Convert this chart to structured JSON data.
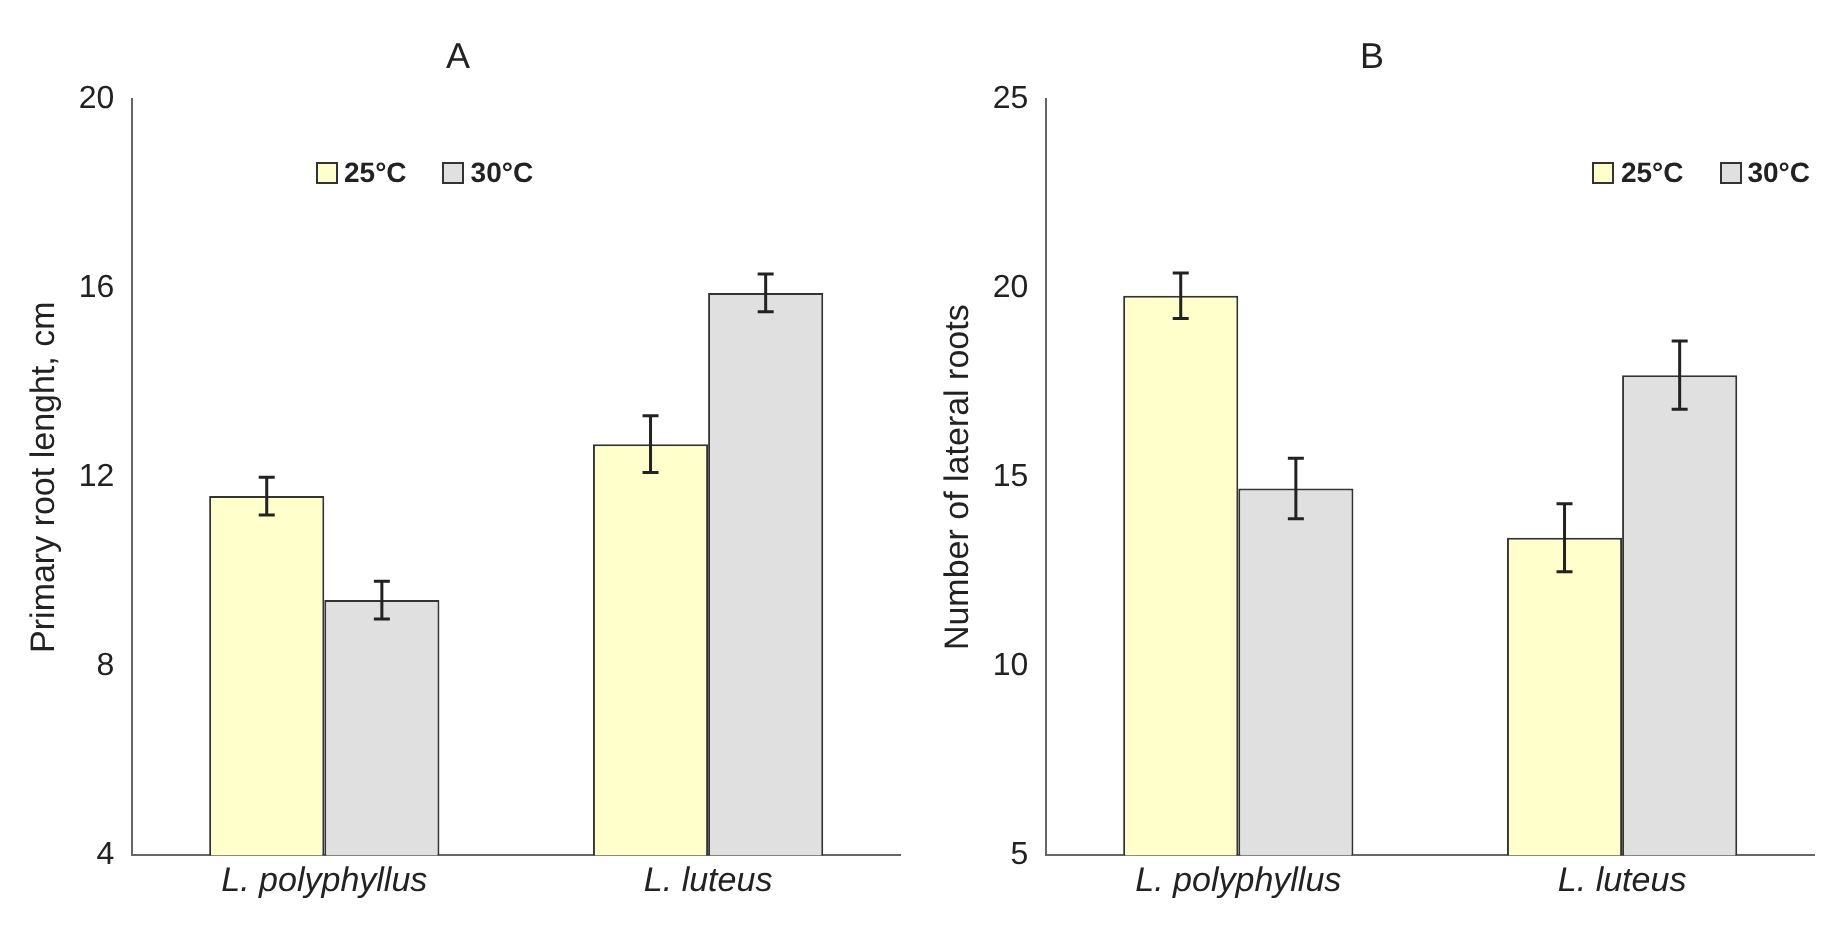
{
  "chart_data": [
    {
      "type": "bar",
      "title": "A",
      "ylabel": "Primary root lenght, cm",
      "categories": [
        "L. polyphyllus",
        "L. luteus"
      ],
      "ylim": [
        4,
        20
      ],
      "yticks": [
        4,
        8,
        12,
        16,
        20
      ],
      "grid": false,
      "legend": "top",
      "series": [
        {
          "name": "25°C",
          "color": "#ffffcc",
          "values": [
            11.6,
            12.7
          ],
          "errors": [
            0.4,
            0.6
          ]
        },
        {
          "name": "30°C",
          "color": "#e0e0e0",
          "values": [
            9.4,
            15.9
          ],
          "errors": [
            0.4,
            0.4
          ]
        }
      ]
    },
    {
      "type": "bar",
      "title": "B",
      "ylabel": "Number of lateral roots",
      "categories": [
        "L. polyphyllus",
        "L. luteus"
      ],
      "ylim": [
        5,
        25
      ],
      "yticks": [
        5,
        10,
        15,
        20,
        25
      ],
      "grid": false,
      "legend": "top right",
      "series": [
        {
          "name": "25°C",
          "color": "#ffffcc",
          "values": [
            19.8,
            13.4
          ],
          "errors": [
            0.6,
            0.9
          ]
        },
        {
          "name": "30°C",
          "color": "#e0e0e0",
          "values": [
            14.7,
            17.7
          ],
          "errors": [
            0.8,
            0.9
          ]
        }
      ]
    }
  ]
}
